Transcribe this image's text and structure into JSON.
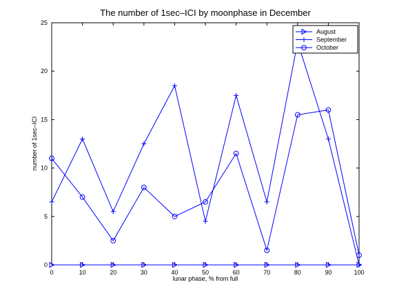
{
  "chart_data": {
    "type": "line",
    "title": "The number of 1sec–ICI by moonphase in December",
    "xlabel": "lunar phase, % from full",
    "ylabel": "number of 1sec–ICI",
    "xlim": [
      0,
      100
    ],
    "ylim": [
      0,
      25
    ],
    "x_ticks": [
      0,
      10,
      20,
      30,
      40,
      50,
      60,
      70,
      80,
      90,
      100
    ],
    "y_ticks": [
      0,
      5,
      10,
      15,
      20,
      25
    ],
    "x_tick_labels": [
      "0",
      "10",
      "20",
      "30",
      "40",
      "50",
      "60",
      "70",
      "80",
      "90",
      "100"
    ],
    "y_tick_labels": [
      "0",
      "5",
      "10",
      "15",
      "20",
      "25"
    ],
    "grid": false,
    "legend_position": "top-right",
    "line_color": "#0000ff",
    "x": [
      0,
      10,
      20,
      30,
      40,
      50,
      60,
      70,
      80,
      90,
      100
    ],
    "series": [
      {
        "name": "August",
        "marker": "triangle-right",
        "values": [
          0,
          0,
          0,
          0,
          0,
          0,
          0,
          0,
          0,
          0,
          0
        ]
      },
      {
        "name": "September",
        "marker": "plus",
        "values": [
          6.5,
          13,
          5.5,
          12.5,
          18.5,
          4.5,
          17.5,
          6.5,
          23,
          13,
          0
        ]
      },
      {
        "name": "October",
        "marker": "circle",
        "values": [
          11,
          7,
          2.5,
          8,
          5,
          6.5,
          11.5,
          1.5,
          15.5,
          16,
          1
        ]
      }
    ]
  }
}
